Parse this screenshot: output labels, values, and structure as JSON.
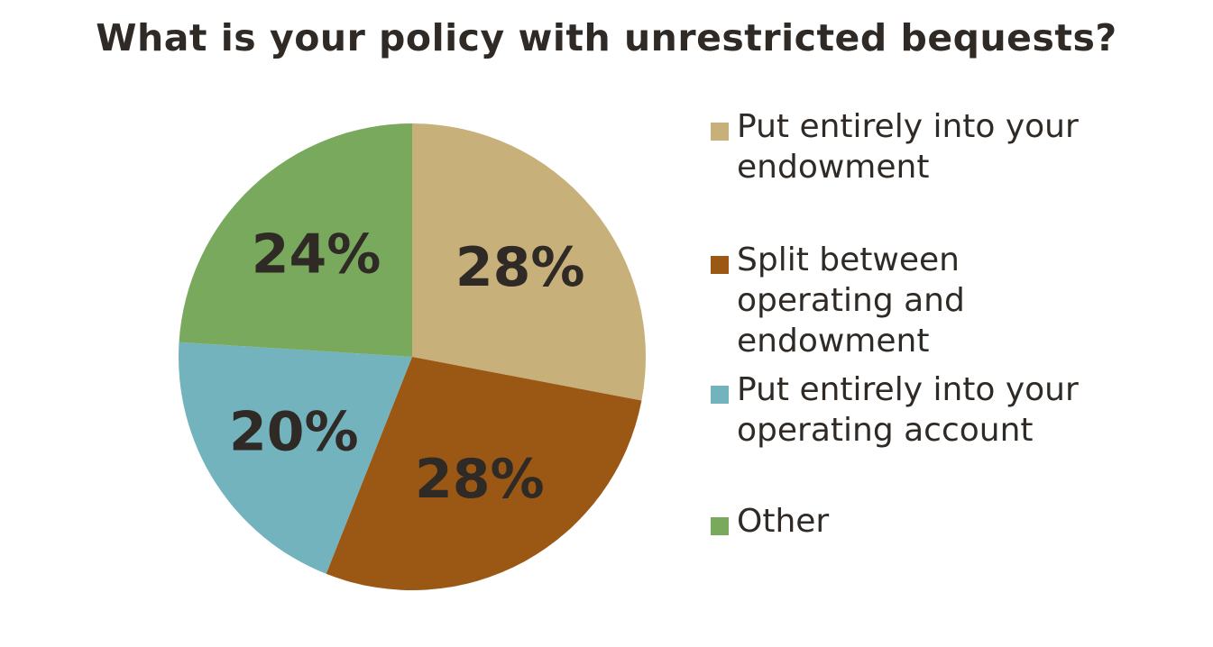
{
  "chart_data": {
    "type": "pie",
    "title": "What is your policy with unrestricted bequests?",
    "slices": [
      {
        "label": "Put entirely into your endowment",
        "value": 28,
        "display": "28%",
        "color": "#c8b07a"
      },
      {
        "label": "Split between operating and endowment",
        "value": 28,
        "display": "28%",
        "color": "#9b5815"
      },
      {
        "label": "Put entirely into your operating account",
        "value": 20,
        "display": "20%",
        "color": "#72b3bd"
      },
      {
        "label": "Other",
        "value": 24,
        "display": "24%",
        "color": "#78a95d"
      }
    ],
    "legend_position": "right",
    "start": "12 o'clock",
    "direction": "clockwise"
  }
}
